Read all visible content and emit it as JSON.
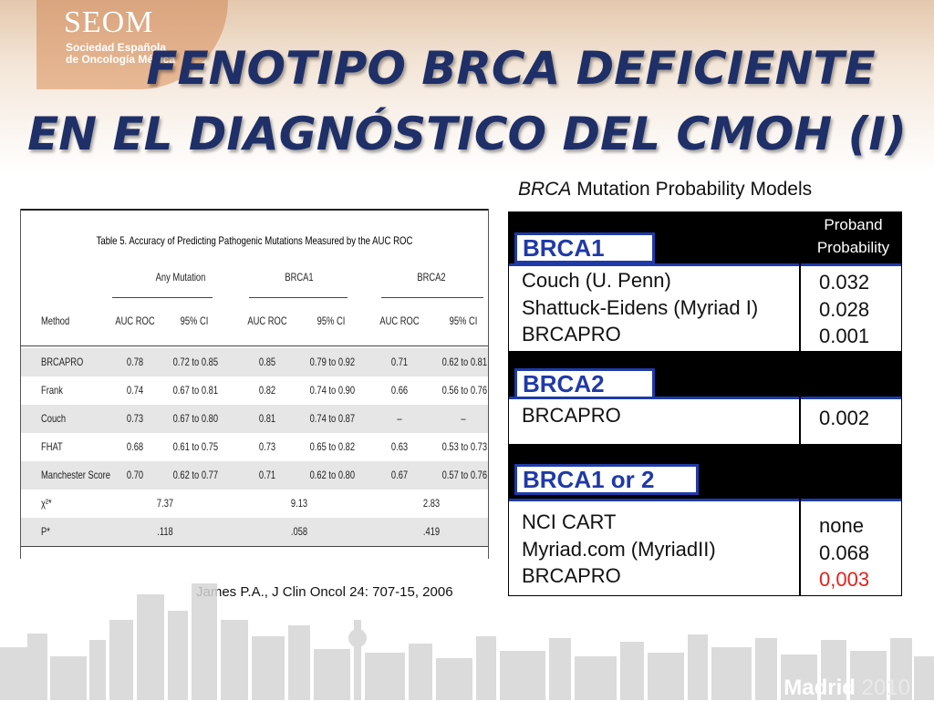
{
  "logo": {
    "name": "SEOM",
    "line1": "Sociedad Española",
    "line2": "de Oncología Médica"
  },
  "title": {
    "line1": "FENOTIPO BRCA DEFICIENTE",
    "line2": "EN EL DIAGNÓSTICO DEL CMOH (I)"
  },
  "left_table": {
    "caption": "Table 5. Accuracy of Predicting Pathogenic Mutations Measured by the AUC ROC",
    "groups": [
      "Any Mutation",
      "BRCA1",
      "BRCA2"
    ],
    "columns": [
      "Method",
      "AUC ROC",
      "95% CI",
      "AUC ROC",
      "95% CI",
      "AUC ROC",
      "95% CI"
    ],
    "rows": [
      [
        "BRCAPRO",
        "0.78",
        "0.72 to 0.85",
        "0.85",
        "0.79 to 0.92",
        "0.71",
        "0.62 to 0.81"
      ],
      [
        "Frank",
        "0.74",
        "0.67 to 0.81",
        "0.82",
        "0.74 to 0.90",
        "0.66",
        "0.56 to 0.76"
      ],
      [
        "Couch",
        "0.73",
        "0.67 to 0.80",
        "0.81",
        "0.74 to 0.87",
        "–",
        "–"
      ],
      [
        "FHAT",
        "0.68",
        "0.61 to 0.75",
        "0.73",
        "0.65 to 0.82",
        "0.63",
        "0.53 to 0.73"
      ],
      [
        "Manchester Score",
        "0.70",
        "0.62 to 0.77",
        "0.71",
        "0.62 to 0.80",
        "0.67",
        "0.57 to 0.76"
      ]
    ],
    "chi_label": "χ²*",
    "chi_values": [
      "7.37",
      "9.13",
      "2.83"
    ],
    "p_label": "P*",
    "p_values": [
      ".118",
      ".058",
      ".419"
    ]
  },
  "citation": "James P.A., J Clin Oncol 24: 707-15, 2006",
  "right_table": {
    "title_italic": "BRCA",
    "title_rest": " Mutation Probability Models",
    "header": {
      "line1": "Proband",
      "line2": "Probability"
    },
    "sections": [
      {
        "name": "BRCA1",
        "rows": [
          {
            "label": "Couch (U. Penn)",
            "value": "0.032"
          },
          {
            "label": "Shattuck-Eidens (Myriad I)",
            "value": "0.028"
          },
          {
            "label": "BRCAPRO",
            "value": "0.001"
          }
        ]
      },
      {
        "name": "BRCA2",
        "rows": [
          {
            "label": "BRCAPRO",
            "value": "0.002"
          }
        ]
      },
      {
        "name": "BRCA1 or 2",
        "rows": [
          {
            "label": "NCI CART",
            "value": "none"
          },
          {
            "label": "Myriad.com (MyriadII)",
            "value": "0.068"
          },
          {
            "label": "BRCAPRO",
            "value": "0,003"
          }
        ]
      }
    ],
    "highlight_color": "#e8201a"
  },
  "footer": {
    "city": "Madrid",
    "year": "2010"
  }
}
